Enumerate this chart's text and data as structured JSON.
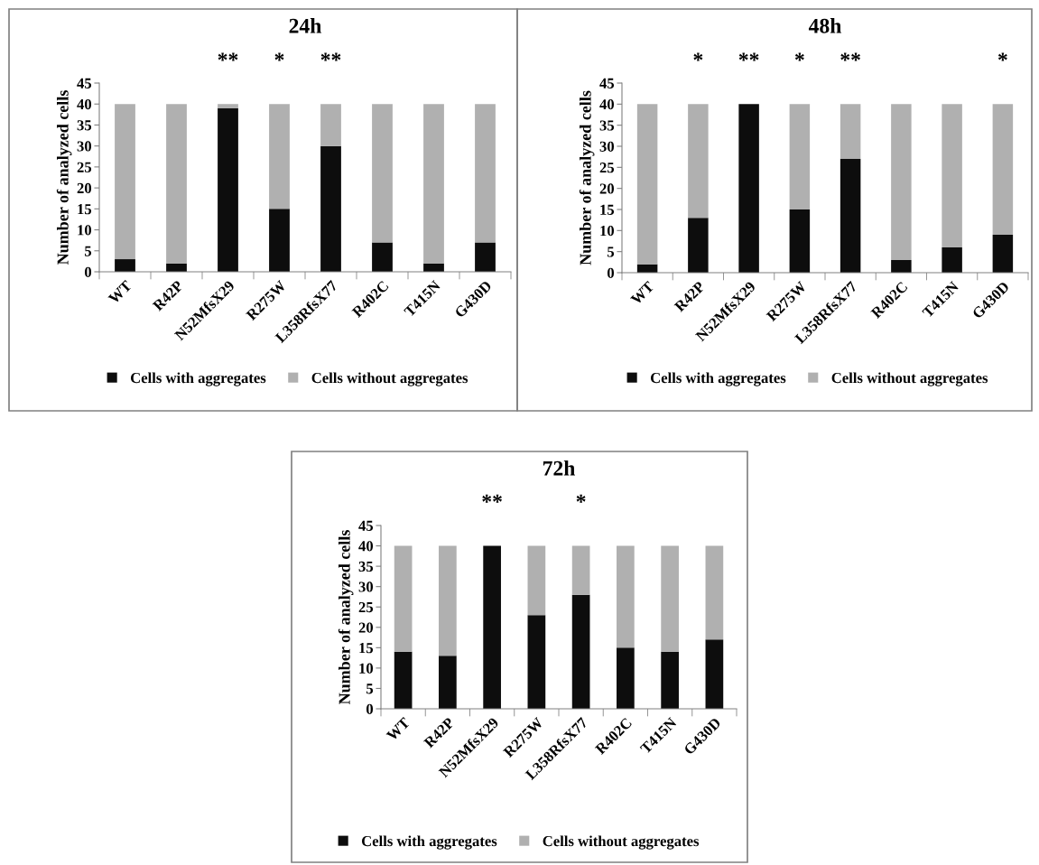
{
  "chart_data": [
    {
      "type": "bar",
      "title": "24h",
      "ylabel": "Number of analyzed cells",
      "stacked": true,
      "legend": "bottom",
      "grid": false,
      "categories": [
        "WT",
        "R42P",
        "N52MfsX29",
        "R275W",
        "L358RfsX77",
        "R402C",
        "T415N",
        "G430D"
      ],
      "series": [
        {
          "name": "Cells with aggregates",
          "color": "#0d0d0d",
          "values": [
            3,
            2,
            39,
            15,
            30,
            7,
            2,
            7
          ]
        },
        {
          "name": "Cells without aggregates",
          "color": "#b0b0b0",
          "values": [
            37,
            38,
            1,
            25,
            10,
            33,
            38,
            33
          ]
        }
      ],
      "ylim": [
        0,
        45
      ],
      "yticks": [
        0,
        5,
        10,
        15,
        20,
        25,
        30,
        35,
        40,
        45
      ],
      "annotations": [
        {
          "text": "**",
          "x": "N52MfsX29",
          "y": 40
        },
        {
          "text": "*",
          "x": "R275W",
          "y": 40
        },
        {
          "text": "**",
          "x": "L358RfsX77",
          "y": 40
        }
      ]
    },
    {
      "type": "bar",
      "title": "48h",
      "ylabel": "Number of analyzed cells",
      "stacked": true,
      "legend": "bottom",
      "grid": false,
      "categories": [
        "WT",
        "R42P",
        "N52MfsX29",
        "R275W",
        "L358RfsX77",
        "R402C",
        "T415N",
        "G430D"
      ],
      "series": [
        {
          "name": "Cells with aggregates",
          "color": "#0d0d0d",
          "values": [
            2,
            13,
            40,
            15,
            27,
            3,
            6,
            9
          ]
        },
        {
          "name": "Cells without aggregates",
          "color": "#b0b0b0",
          "values": [
            38,
            27,
            0,
            25,
            13,
            37,
            34,
            31
          ]
        }
      ],
      "ylim": [
        0,
        45
      ],
      "yticks": [
        0,
        5,
        10,
        15,
        20,
        25,
        30,
        35,
        40,
        45
      ],
      "annotations": [
        {
          "text": "*",
          "x": "R42P",
          "y": 40
        },
        {
          "text": "**",
          "x": "N52MfsX29",
          "y": 40
        },
        {
          "text": "*",
          "x": "R275W",
          "y": 40
        },
        {
          "text": "**",
          "x": "L358RfsX77",
          "y": 40
        },
        {
          "text": "*",
          "x": "G430D",
          "y": 40
        }
      ]
    },
    {
      "type": "bar",
      "title": "72h",
      "ylabel": "Number of analyzed cells",
      "stacked": true,
      "legend": "bottom",
      "grid": false,
      "categories": [
        "WT",
        "R42P",
        "N52MfsX29",
        "R275W",
        "L358RfsX77",
        "R402C",
        "T415N",
        "G430D"
      ],
      "series": [
        {
          "name": "Cells with aggregates",
          "color": "#0d0d0d",
          "values": [
            14,
            13,
            40,
            23,
            28,
            15,
            14,
            17
          ]
        },
        {
          "name": "Cells without aggregates",
          "color": "#b0b0b0",
          "values": [
            26,
            27,
            0,
            17,
            12,
            25,
            26,
            23
          ]
        }
      ],
      "ylim": [
        0,
        45
      ],
      "yticks": [
        0,
        5,
        10,
        15,
        20,
        25,
        30,
        35,
        40,
        45
      ],
      "annotations": [
        {
          "text": "**",
          "x": "N52MfsX29",
          "y": 40
        },
        {
          "text": "*",
          "x": "L358RfsX77",
          "y": 40
        }
      ]
    }
  ]
}
